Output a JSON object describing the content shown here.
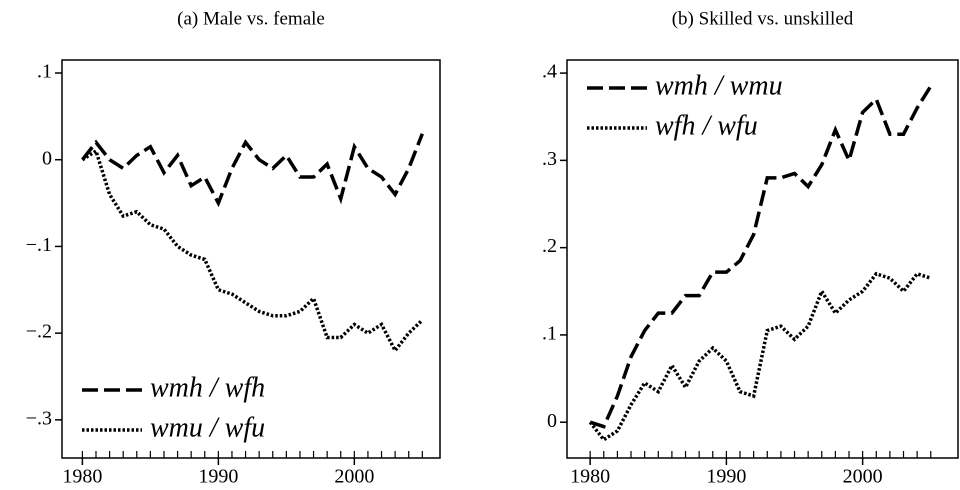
{
  "chart_data": [
    {
      "type": "line",
      "title": "(a) Male vs. female",
      "x": [
        1980,
        1981,
        1982,
        1983,
        1984,
        1985,
        1986,
        1987,
        1988,
        1989,
        1990,
        1991,
        1992,
        1993,
        1994,
        1995,
        1996,
        1997,
        1998,
        1999,
        2000,
        2001,
        2002,
        2003,
        2004,
        2005
      ],
      "series": [
        {
          "name": "wmh / wfh",
          "color": "#000000",
          "dash": "dashed",
          "values": [
            0,
            0.02,
            0,
            -0.01,
            0.005,
            0.015,
            -0.015,
            0.005,
            -0.03,
            -0.02,
            -0.05,
            -0.01,
            0.02,
            0,
            -0.01,
            0.005,
            -0.02,
            -0.02,
            -0.005,
            -0.045,
            0.015,
            -0.01,
            -0.02,
            -0.04,
            -0.01,
            0.03
          ]
        },
        {
          "name": "wmu / wfu",
          "color": "#000000",
          "dash": "dotted",
          "values": [
            0,
            0.01,
            -0.04,
            -0.065,
            -0.06,
            -0.075,
            -0.08,
            -0.1,
            -0.11,
            -0.115,
            -0.15,
            -0.155,
            -0.165,
            -0.175,
            -0.18,
            -0.18,
            -0.175,
            -0.16,
            -0.205,
            -0.205,
            -0.19,
            -0.2,
            -0.19,
            -0.22,
            -0.2,
            -0.185
          ]
        }
      ],
      "xlim": [
        1978.5,
        2006.3
      ],
      "xticks": [
        1980,
        1990,
        2000
      ],
      "xminorticks": [
        1980,
        1981,
        1982,
        1983,
        1984,
        1985,
        1986,
        1987,
        1988,
        1989,
        1990,
        1991,
        1992,
        1993,
        1994,
        1995,
        1996,
        1997,
        1998,
        1999,
        2000,
        2001,
        2002,
        2003,
        2004,
        2005
      ],
      "ylim": [
        -0.344,
        0.115
      ],
      "yticks": [
        {
          "value": 0.1,
          "label": ".1"
        },
        0,
        {
          "value": -0.1,
          "label": "−.1"
        },
        {
          "value": -0.2,
          "label": "−.2"
        },
        {
          "value": -0.3,
          "label": "−.3"
        }
      ],
      "legend": "lower left",
      "grid": false
    },
    {
      "type": "line",
      "title": "(b) Skilled vs. unskilled",
      "x": [
        1980,
        1981,
        1982,
        1983,
        1984,
        1985,
        1986,
        1987,
        1988,
        1989,
        1990,
        1991,
        1992,
        1993,
        1994,
        1995,
        1996,
        1997,
        1998,
        1999,
        2000,
        2001,
        2002,
        2003,
        2004,
        2005
      ],
      "series": [
        {
          "name": "wmh / wmu",
          "color": "#000000",
          "dash": "dashed",
          "values": [
            0,
            -0.005,
            0.03,
            0.075,
            0.105,
            0.125,
            0.125,
            0.145,
            0.145,
            0.172,
            0.172,
            0.185,
            0.215,
            0.28,
            0.28,
            0.285,
            0.27,
            0.295,
            0.335,
            0.3,
            0.355,
            0.37,
            0.33,
            0.33,
            0.36,
            0.385
          ]
        },
        {
          "name": "wfh / wfu",
          "color": "#000000",
          "dash": "dotted",
          "values": [
            0,
            -0.02,
            -0.01,
            0.02,
            0.045,
            0.035,
            0.065,
            0.04,
            0.07,
            0.085,
            0.07,
            0.035,
            0.03,
            0.105,
            0.11,
            0.095,
            0.11,
            0.15,
            0.125,
            0.14,
            0.15,
            0.17,
            0.165,
            0.15,
            0.17,
            0.165
          ]
        }
      ],
      "xlim": [
        1978.3,
        2007.0
      ],
      "xticks": [
        1980,
        1990,
        2000
      ],
      "xminorticks": [
        1980,
        1981,
        1982,
        1983,
        1984,
        1985,
        1986,
        1987,
        1988,
        1989,
        1990,
        1991,
        1992,
        1993,
        1994,
        1995,
        1996,
        1997,
        1998,
        1999,
        2000,
        2001,
        2002,
        2003,
        2004,
        2005
      ],
      "ylim": [
        -0.041,
        0.415
      ],
      "yticks": [
        0,
        {
          "value": 0.1,
          "label": ".1"
        },
        {
          "value": 0.2,
          "label": ".2"
        },
        {
          "value": 0.3,
          "label": ".3"
        },
        {
          "value": 0.4,
          "label": ".4"
        }
      ],
      "legend": "upper left",
      "grid": false
    }
  ]
}
